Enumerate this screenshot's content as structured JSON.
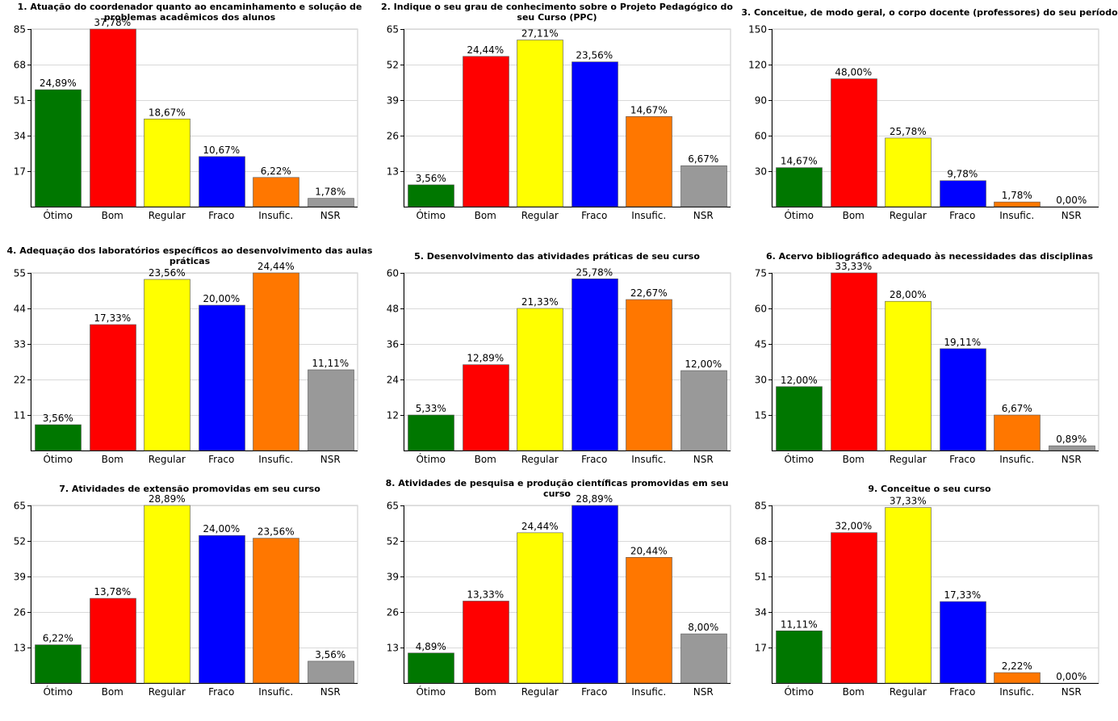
{
  "chart_data": [
    {
      "type": "bar",
      "title": "1. Atuação do coordenador quanto ao encaminhamento e solução de problemas acadêmicos dos alunos",
      "categories": [
        "Ótimo",
        "Bom",
        "Regular",
        "Fraco",
        "Insufic.",
        "NSR"
      ],
      "values": [
        56,
        85,
        42,
        24,
        14,
        4
      ],
      "labels": [
        "24,89%",
        "37,78%",
        "18,67%",
        "10,67%",
        "6,22%",
        "1,78%"
      ],
      "yticks": [
        17,
        34,
        51,
        68,
        85
      ],
      "ylim": [
        0,
        85
      ]
    },
    {
      "type": "bar",
      "title": "2. Indique o seu grau de conhecimento sobre o Projeto Pedagógico do seu Curso (PPC)",
      "categories": [
        "Ótimo",
        "Bom",
        "Regular",
        "Fraco",
        "Insufic.",
        "NSR"
      ],
      "values": [
        8,
        55,
        61,
        53,
        33,
        15
      ],
      "labels": [
        "3,56%",
        "24,44%",
        "27,11%",
        "23,56%",
        "14,67%",
        "6,67%"
      ],
      "yticks": [
        13,
        26,
        39,
        52,
        65
      ],
      "ylim": [
        0,
        65
      ]
    },
    {
      "type": "bar",
      "title": "3. Conceitue, de modo geral, o corpo docente (professores) do seu período",
      "categories": [
        "Ótimo",
        "Bom",
        "Regular",
        "Fraco",
        "Insufic.",
        "NSR"
      ],
      "values": [
        33,
        108,
        58,
        22,
        4,
        0
      ],
      "labels": [
        "14,67%",
        "48,00%",
        "25,78%",
        "9,78%",
        "1,78%",
        "0,00%"
      ],
      "yticks": [
        30,
        60,
        90,
        120,
        150
      ],
      "ylim": [
        0,
        150
      ]
    },
    {
      "type": "bar",
      "title": "4. Adequação dos laboratórios específicos ao desenvolvimento das aulas práticas",
      "categories": [
        "Ótimo",
        "Bom",
        "Regular",
        "Fraco",
        "Insufic.",
        "NSR"
      ],
      "values": [
        8,
        39,
        53,
        45,
        55,
        25
      ],
      "labels": [
        "3,56%",
        "17,33%",
        "23,56%",
        "20,00%",
        "24,44%",
        "11,11%"
      ],
      "yticks": [
        11,
        22,
        33,
        44,
        55
      ],
      "ylim": [
        0,
        55
      ]
    },
    {
      "type": "bar",
      "title": "5. Desenvolvimento das atividades práticas de seu curso",
      "categories": [
        "Ótimo",
        "Bom",
        "Regular",
        "Fraco",
        "Insufic.",
        "NSR"
      ],
      "values": [
        12,
        29,
        48,
        58,
        51,
        27
      ],
      "labels": [
        "5,33%",
        "12,89%",
        "21,33%",
        "25,78%",
        "22,67%",
        "12,00%"
      ],
      "yticks": [
        12,
        24,
        36,
        48,
        60
      ],
      "ylim": [
        0,
        60
      ]
    },
    {
      "type": "bar",
      "title": "6. Acervo bibliográfico adequado às necessidades das disciplinas",
      "categories": [
        "Ótimo",
        "Bom",
        "Regular",
        "Fraco",
        "Insufic.",
        "NSR"
      ],
      "values": [
        27,
        75,
        63,
        43,
        15,
        2
      ],
      "labels": [
        "12,00%",
        "33,33%",
        "28,00%",
        "19,11%",
        "6,67%",
        "0,89%"
      ],
      "yticks": [
        15,
        30,
        45,
        60,
        75
      ],
      "ylim": [
        0,
        75
      ]
    },
    {
      "type": "bar",
      "title": "7. Atividades de extensão promovidas em seu curso",
      "categories": [
        "Ótimo",
        "Bom",
        "Regular",
        "Fraco",
        "Insufic.",
        "NSR"
      ],
      "values": [
        14,
        31,
        65,
        54,
        53,
        8
      ],
      "labels": [
        "6,22%",
        "13,78%",
        "28,89%",
        "24,00%",
        "23,56%",
        "3,56%"
      ],
      "yticks": [
        13,
        26,
        39,
        52,
        65
      ],
      "ylim": [
        0,
        65
      ]
    },
    {
      "type": "bar",
      "title": "8. Atividades de pesquisa e produção científicas promovidas em seu curso",
      "categories": [
        "Ótimo",
        "Bom",
        "Regular",
        "Fraco",
        "Insufic.",
        "NSR"
      ],
      "values": [
        11,
        30,
        55,
        65,
        46,
        18
      ],
      "labels": [
        "4,89%",
        "13,33%",
        "24,44%",
        "28,89%",
        "20,44%",
        "8,00%"
      ],
      "yticks": [
        13,
        26,
        39,
        52,
        65
      ],
      "ylim": [
        0,
        65
      ]
    },
    {
      "type": "bar",
      "title": "9. Conceitue o seu curso",
      "categories": [
        "Ótimo",
        "Bom",
        "Regular",
        "Fraco",
        "Insufic.",
        "NSR"
      ],
      "values": [
        25,
        72,
        84,
        39,
        5,
        0
      ],
      "labels": [
        "11,11%",
        "32,00%",
        "37,33%",
        "17,33%",
        "2,22%",
        "0,00%"
      ],
      "yticks": [
        17,
        34,
        51,
        68,
        85
      ],
      "ylim": [
        0,
        85
      ]
    }
  ],
  "colors": [
    "#007700",
    "#ff0000",
    "#ffff00",
    "#0000ff",
    "#ff7700",
    "#999999"
  ],
  "grid": true
}
